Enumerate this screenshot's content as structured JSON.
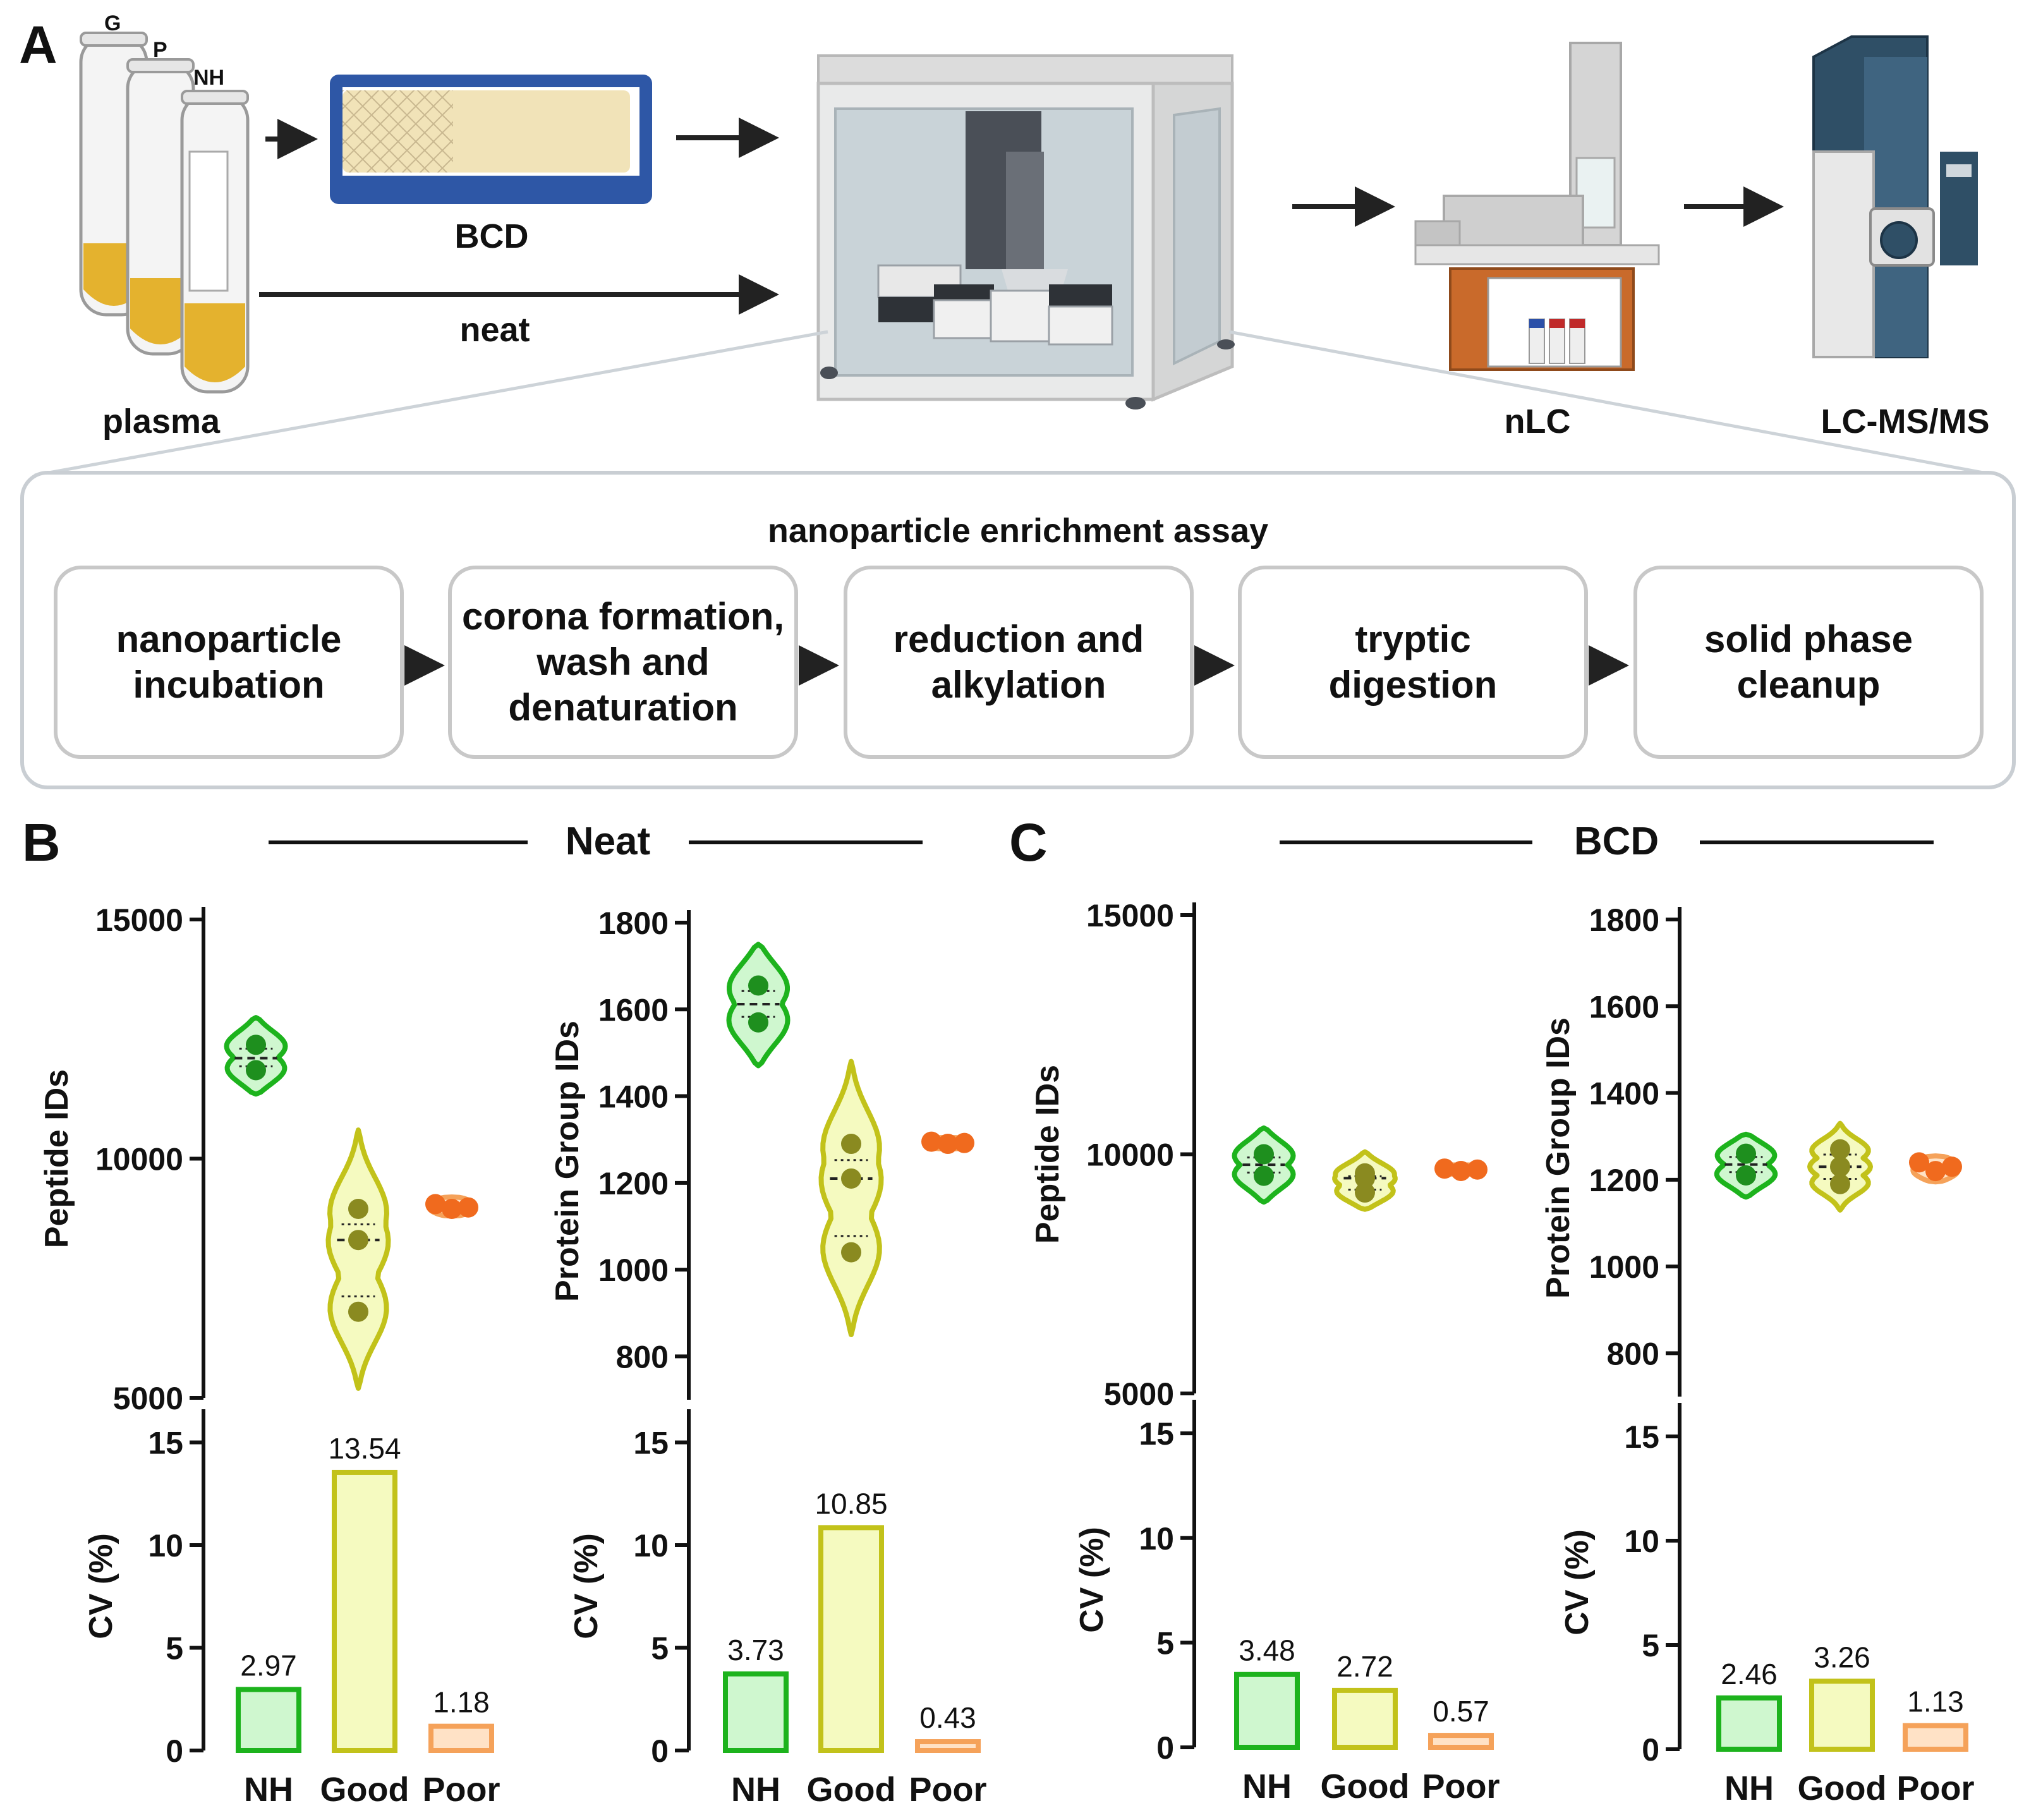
{
  "panel_labels": {
    "a": "A",
    "b": "B",
    "c": "C"
  },
  "workflow": {
    "tube_labels": [
      "G",
      "P",
      "NH"
    ],
    "plasma": "plasma",
    "bcd": "BCD",
    "neat": "neat",
    "nlc": "nLC",
    "lcms": "LC-MS/MS"
  },
  "assay": {
    "title": "nanoparticle enrichment assay",
    "steps": [
      [
        "nanoparticle",
        "incubation"
      ],
      [
        "corona formation,",
        "wash and",
        "denaturation"
      ],
      [
        "reduction and",
        "alkylation"
      ],
      [
        "tryptic",
        "digestion"
      ],
      [
        "solid phase",
        "cleanup"
      ]
    ]
  },
  "section_titles": {
    "neat": "Neat",
    "bcd": "BCD"
  },
  "colors": {
    "NH": {
      "stroke": "#1DB31D",
      "fill": "#CFF7CF",
      "dot": "#1E8F1E"
    },
    "Good": {
      "stroke": "#C2C21A",
      "fill": "#F5FAC0",
      "dot": "#8A8A20"
    },
    "Poor": {
      "stroke": "#F5A25A",
      "fill": "#FFE2C6",
      "dot": "#F06A1E"
    }
  },
  "chart_data": [
    {
      "type": "violin",
      "panel": "B",
      "ylabel": "Peptide IDs",
      "ylim": [
        5000,
        15000
      ],
      "yticks": [
        5000,
        10000,
        15000
      ],
      "groups": [
        {
          "name": "NH",
          "points": [
            12380,
            11850
          ],
          "median": 12100,
          "range": [
            11350,
            12950
          ]
        },
        {
          "name": "Good",
          "points": [
            8950,
            8300,
            6800
          ],
          "median": 8300,
          "range": [
            5200,
            10600
          ]
        },
        {
          "name": "Poor",
          "points": [
            9050,
            8950,
            8980
          ],
          "median": 8990,
          "range": [
            8800,
            9200
          ]
        }
      ]
    },
    {
      "type": "bar",
      "panel": "B",
      "ylabel": "CV (%)",
      "ylim": [
        0,
        16
      ],
      "yticks": [
        0,
        5,
        10,
        15
      ],
      "categories": [
        "NH",
        "Good",
        "Poor"
      ],
      "values": [
        2.97,
        13.54,
        1.18
      ],
      "value_labels": [
        "2.97",
        "13.54",
        "1.18"
      ]
    },
    {
      "type": "violin",
      "panel": "B",
      "ylabel": "Protein Group IDs",
      "ylim": [
        700,
        1800
      ],
      "yticks": [
        800,
        1000,
        1200,
        1400,
        1600,
        1800
      ],
      "groups": [
        {
          "name": "NH",
          "points": [
            1655,
            1570
          ],
          "median": 1612,
          "range": [
            1470,
            1750
          ]
        },
        {
          "name": "Good",
          "points": [
            1290,
            1210,
            1040
          ],
          "median": 1210,
          "range": [
            850,
            1480
          ]
        },
        {
          "name": "Poor",
          "points": [
            1295,
            1290,
            1292
          ],
          "median": 1292,
          "range": [
            1278,
            1305
          ]
        }
      ]
    },
    {
      "type": "bar",
      "panel": "B",
      "ylabel": "CV (%)",
      "ylim": [
        0,
        16
      ],
      "yticks": [
        0,
        5,
        10,
        15
      ],
      "categories": [
        "NH",
        "Good",
        "Poor"
      ],
      "values": [
        3.73,
        10.85,
        0.43
      ],
      "value_labels": [
        "3.73",
        "10.85",
        "0.43"
      ]
    },
    {
      "type": "violin",
      "panel": "C",
      "ylabel": "Peptide IDs",
      "ylim": [
        5000,
        15000
      ],
      "yticks": [
        5000,
        10000,
        15000
      ],
      "groups": [
        {
          "name": "NH",
          "points": [
            10000,
            9550
          ],
          "median": 9780,
          "range": [
            9000,
            10550
          ]
        },
        {
          "name": "Good",
          "points": [
            9600,
            9500,
            9200
          ],
          "median": 9500,
          "range": [
            8850,
            10050
          ]
        },
        {
          "name": "Poor",
          "points": [
            9700,
            9650,
            9680
          ],
          "median": 9680,
          "range": [
            9580,
            9780
          ]
        }
      ]
    },
    {
      "type": "bar",
      "panel": "C",
      "ylabel": "CV (%)",
      "ylim": [
        0,
        16
      ],
      "yticks": [
        0,
        5,
        10,
        15
      ],
      "categories": [
        "NH",
        "Good",
        "Poor"
      ],
      "values": [
        3.48,
        2.72,
        0.57
      ],
      "value_labels": [
        "3.48",
        "2.72",
        "0.57"
      ]
    },
    {
      "type": "violin",
      "panel": "C",
      "ylabel": "Protein Group IDs",
      "ylim": [
        700,
        1800
      ],
      "yticks": [
        800,
        1000,
        1200,
        1400,
        1600,
        1800
      ],
      "groups": [
        {
          "name": "NH",
          "points": [
            1260,
            1210
          ],
          "median": 1235,
          "range": [
            1160,
            1305
          ]
        },
        {
          "name": "Good",
          "points": [
            1270,
            1230,
            1190
          ],
          "median": 1230,
          "range": [
            1130,
            1330
          ]
        },
        {
          "name": "Poor",
          "points": [
            1240,
            1220,
            1230
          ],
          "median": 1230,
          "range": [
            1195,
            1255
          ]
        }
      ]
    },
    {
      "type": "bar",
      "panel": "C",
      "ylabel": "CV (%)",
      "ylim": [
        0,
        16
      ],
      "yticks": [
        0,
        5,
        10,
        15
      ],
      "categories": [
        "NH",
        "Good",
        "Poor"
      ],
      "values": [
        2.46,
        3.26,
        1.13
      ],
      "value_labels": [
        "2.46",
        "3.26",
        "1.13"
      ]
    }
  ]
}
